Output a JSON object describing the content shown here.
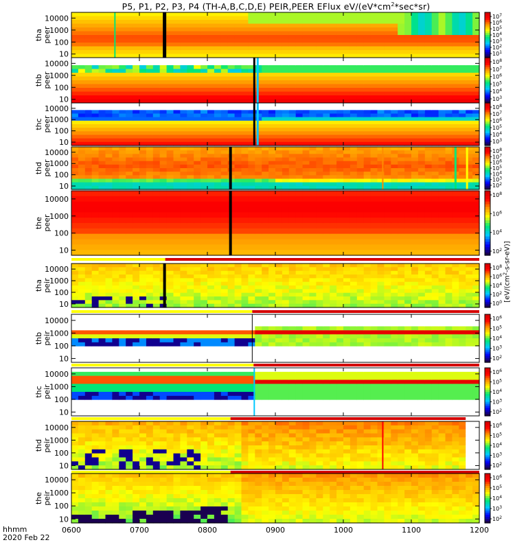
{
  "title": {
    "main": "P5, P1, P2, P3, P4 (TH-A,B,C,D,E) PEIR,PEER EFlux eV/(eV*cm",
    "sup": "2",
    "tail": "*sec*sr)"
  },
  "footer": {
    "unit": "hhmm",
    "date": "2020 Feb 22"
  },
  "colorbar_label": {
    "before": "[eV/(cm",
    "sup": "2",
    "after": "-s-sr-eV)]"
  },
  "chart_data": {
    "type": "heatmap",
    "title": "P5, P1, P2, P3, P4 (TH-A,B,C,D,E) PEIR,PEER EFlux eV/(eV*cm2*sec*sr)",
    "xlabel": "hhmm",
    "date": "2020 Feb 22",
    "x_range": [
      600,
      1200
    ],
    "x_ticks": [
      "0600",
      "0700",
      "0800",
      "0900",
      "1000",
      "1100",
      "1200"
    ],
    "y_scale": "log",
    "y_range": [
      5,
      30000
    ],
    "y_ticks": [
      "10",
      "100",
      "1000",
      "10000"
    ],
    "colorbar_unit": "[eV/(cm2-s-sr-eV)]",
    "colormap": [
      "#1a0050",
      "#0000ff",
      "#00c8ff",
      "#00e676",
      "#ffff00",
      "#ff8c00",
      "#ff0000",
      "#d40000"
    ],
    "panels": [
      {
        "name": "tha peer",
        "label1": "tha",
        "label2": "peer",
        "cbar": [
          "10",
          "2",
          "3",
          "4",
          "5",
          "6",
          "7"
        ],
        "cbar_text": [
          "10^1",
          "10^2",
          "10^3",
          "10^4",
          "10^5",
          "10^6",
          "10^7"
        ]
      },
      {
        "name": "thb peer",
        "label1": "thb",
        "label2": "peer",
        "cbar_text": [
          "10^3",
          "10^4",
          "10^5",
          "10^6",
          "10^7",
          "10^8"
        ]
      },
      {
        "name": "thc peer",
        "label1": "thc",
        "label2": "peer",
        "cbar_text": [
          "10^3",
          "10^4",
          "10^5",
          "10^6",
          "10^7",
          "10^8"
        ]
      },
      {
        "name": "thd peer",
        "label1": "thd",
        "label2": "peer",
        "cbar_text": [
          "10^2",
          "10^3",
          "10^4",
          "10^5",
          "10^6",
          "10^7",
          "10^8"
        ]
      },
      {
        "name": "the peer",
        "label1": "the",
        "label2": "peer",
        "cbar_text": [
          "10^2",
          "10^4",
          "10^6",
          "10^8"
        ]
      },
      {
        "name": "tha peir",
        "label1": "tha",
        "label2": "peir",
        "cbar_text": [
          "10^0",
          "10^2",
          "10^4",
          "10^6",
          "10^8"
        ]
      },
      {
        "name": "thb peir",
        "label1": "thb",
        "label2": "peir",
        "cbar_text": [
          "10^2",
          "10^3",
          "10^4",
          "10^5",
          "10^6"
        ]
      },
      {
        "name": "thc peir",
        "label1": "thc",
        "label2": "peir",
        "cbar_text": [
          "10^2",
          "10^3",
          "10^4",
          "10^5",
          "10^6"
        ]
      },
      {
        "name": "thd peir",
        "label1": "thd",
        "label2": "peir",
        "cbar_text": [
          "10^2",
          "10^3",
          "10^4",
          "10^5",
          "10^6"
        ]
      },
      {
        "name": "the peir",
        "label1": "the",
        "label2": "peir",
        "cbar_text": [
          "10^2",
          "10^3",
          "10^4",
          "10^5",
          "10^6"
        ]
      }
    ]
  }
}
